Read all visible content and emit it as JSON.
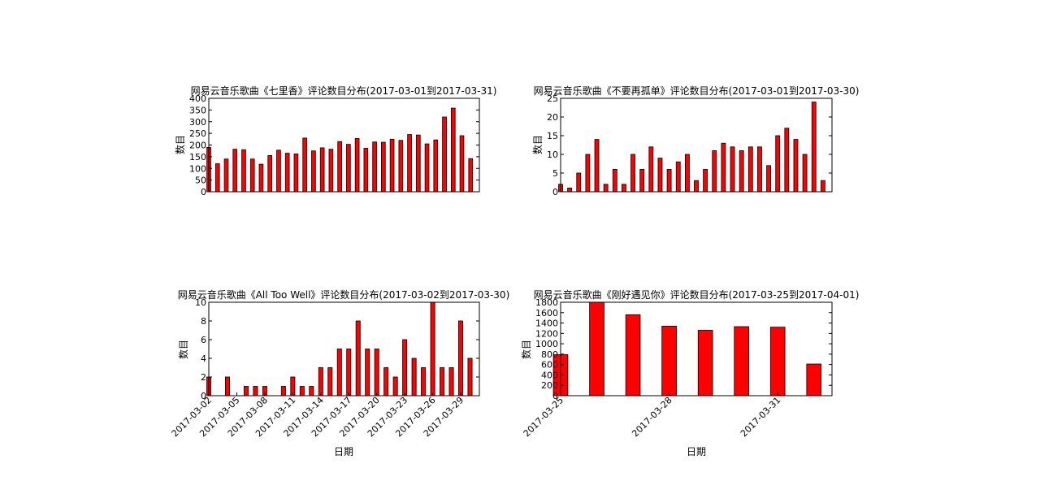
{
  "chart_data": [
    {
      "type": "bar",
      "title": "网易云音乐歌曲《七里香》评论数目分布(2017-03-01到2017-03-31)",
      "xlabel": "",
      "ylabel": "数目",
      "ylim": [
        0,
        400
      ],
      "yticks": [
        0,
        50,
        100,
        150,
        200,
        250,
        300,
        350,
        400
      ],
      "xtick_labels": [],
      "values": [
        190,
        120,
        140,
        182,
        180,
        140,
        118,
        155,
        178,
        165,
        162,
        230,
        175,
        188,
        182,
        215,
        203,
        228,
        186,
        213,
        212,
        225,
        220,
        245,
        243,
        205,
        222,
        320,
        358,
        240,
        142
      ],
      "bar_color": "#ff0000",
      "grid": false
    },
    {
      "type": "bar",
      "title": "网易云音乐歌曲《不要再孤单》评论数目分布(2017-03-01到2017-03-30)",
      "xlabel": "",
      "ylabel": "数目",
      "ylim": [
        0,
        25
      ],
      "yticks": [
        0,
        5,
        10,
        15,
        20,
        25
      ],
      "xtick_labels": [],
      "values": [
        2,
        1,
        5,
        10,
        14,
        2,
        6,
        2,
        10,
        6,
        12,
        9,
        6,
        8,
        10,
        3,
        6,
        11,
        13,
        12,
        11,
        12,
        12,
        7,
        15,
        17,
        14,
        10,
        24,
        3
      ],
      "bar_color": "#ff0000",
      "grid": false
    },
    {
      "type": "bar",
      "title": "网易云音乐歌曲《All Too Well》评论数目分布(2017-03-02到2017-03-30)",
      "xlabel": "日期",
      "ylabel": "数目",
      "ylim": [
        0,
        10
      ],
      "yticks": [
        0,
        2,
        4,
        6,
        8,
        10
      ],
      "xtick_labels": [
        {
          "index": 0,
          "label": "2017-03-02"
        },
        {
          "index": 3,
          "label": "2017-03-05"
        },
        {
          "index": 6,
          "label": "2017-03-08"
        },
        {
          "index": 9,
          "label": "2017-03-11"
        },
        {
          "index": 12,
          "label": "2017-03-14"
        },
        {
          "index": 15,
          "label": "2017-03-17"
        },
        {
          "index": 18,
          "label": "2017-03-20"
        },
        {
          "index": 21,
          "label": "2017-03-23"
        },
        {
          "index": 24,
          "label": "2017-03-26"
        },
        {
          "index": 27,
          "label": "2017-03-29"
        }
      ],
      "values": [
        2,
        0,
        2,
        0,
        1,
        1,
        1,
        0,
        1,
        2,
        1,
        1,
        3,
        3,
        5,
        5,
        8,
        5,
        5,
        3,
        2,
        6,
        4,
        3,
        10,
        3,
        3,
        8,
        4
      ],
      "bar_color": "#ff0000",
      "grid": false
    },
    {
      "type": "bar",
      "title": "网易云音乐歌曲《刚好遇见你》评论数目分布(2017-03-25到2017-04-01)",
      "xlabel": "日期",
      "ylabel": "数目",
      "ylim": [
        0,
        1800
      ],
      "yticks": [
        0,
        200,
        400,
        600,
        800,
        1000,
        1200,
        1400,
        1600,
        1800
      ],
      "xtick_labels": [
        {
          "index": 0,
          "label": "2017-03-25"
        },
        {
          "index": 3,
          "label": "2017-03-28"
        },
        {
          "index": 6,
          "label": "2017-03-31"
        }
      ],
      "values": [
        790,
        1800,
        1560,
        1340,
        1260,
        1330,
        1320,
        610
      ],
      "bar_color": "#ff0000",
      "grid": false
    }
  ]
}
